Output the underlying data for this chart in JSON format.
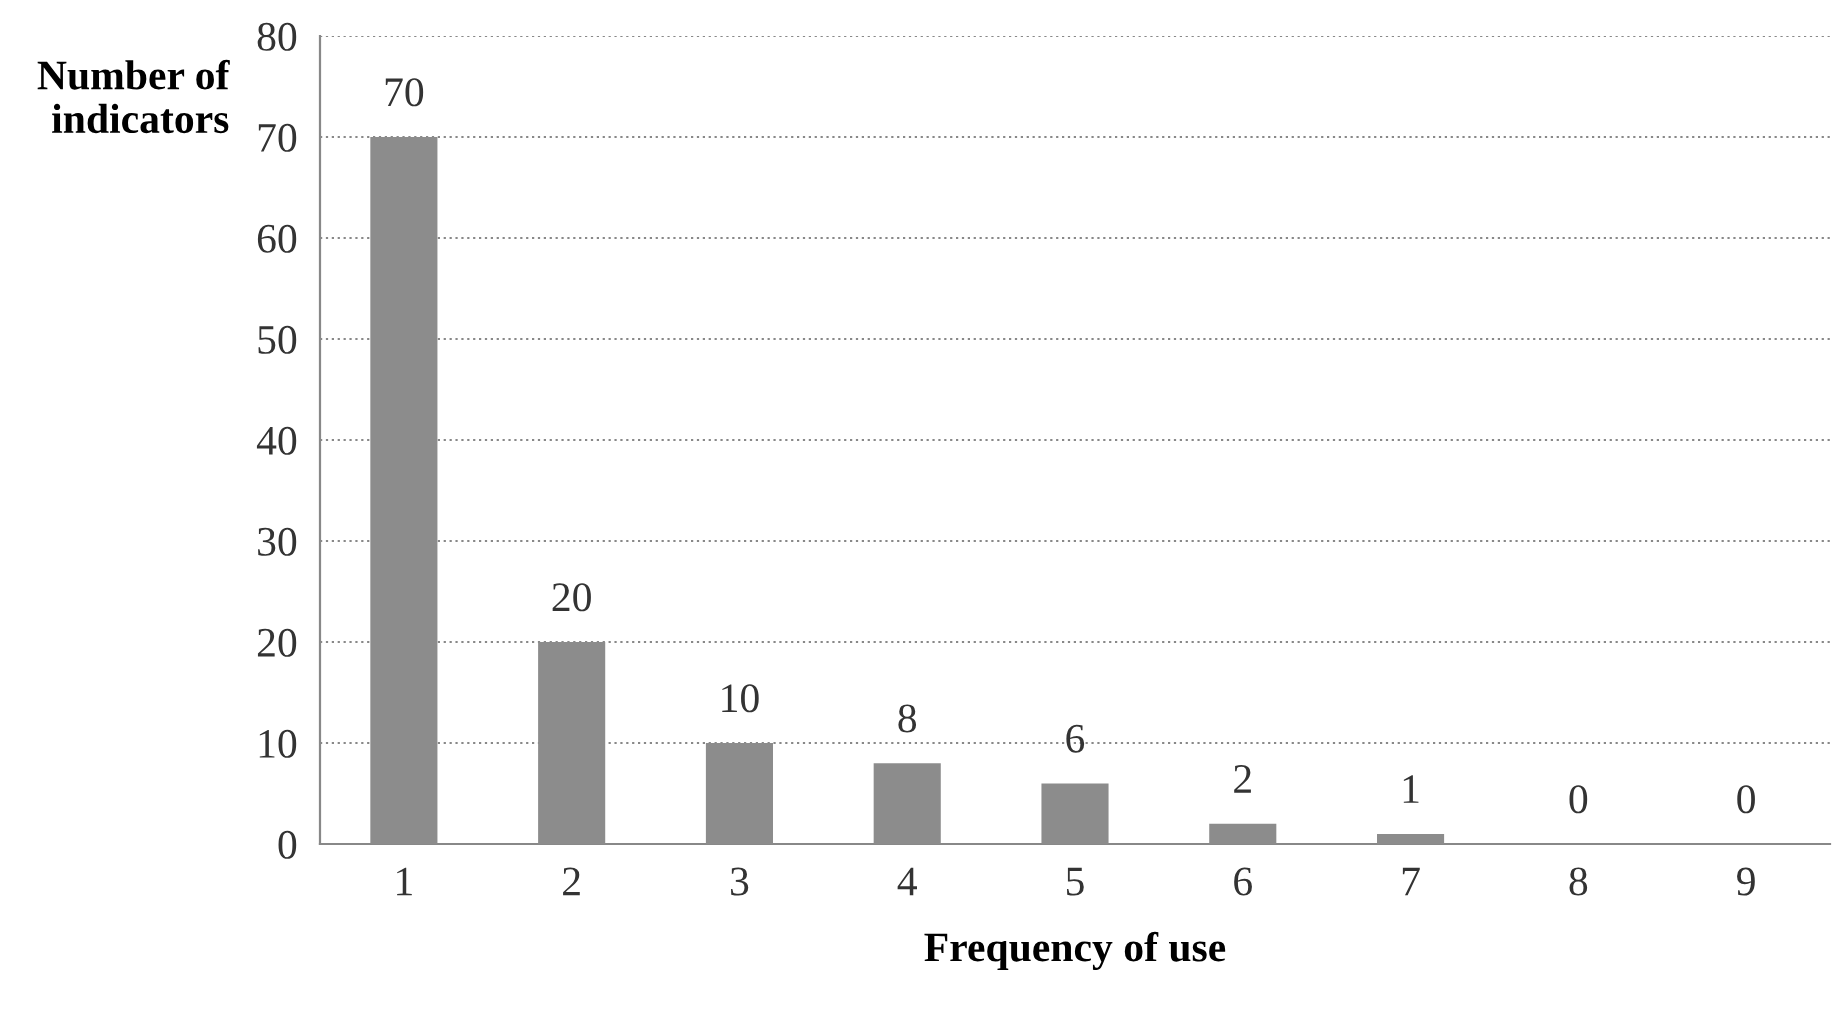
{
  "chart_data": {
    "type": "bar",
    "xlabel": "Frequency of use",
    "ylabel": "Number of\nindicators",
    "categories": [
      "1",
      "2",
      "3",
      "4",
      "5",
      "6",
      "7",
      "8",
      "9"
    ],
    "values": [
      70,
      20,
      10,
      8,
      6,
      2,
      1,
      0,
      0
    ],
    "color": "#8c8c8c",
    "ylim": [
      0,
      80
    ],
    "yticks": [
      0,
      10,
      20,
      30,
      40,
      50,
      60,
      70,
      80
    ],
    "grid": "y",
    "data_labels": true
  }
}
